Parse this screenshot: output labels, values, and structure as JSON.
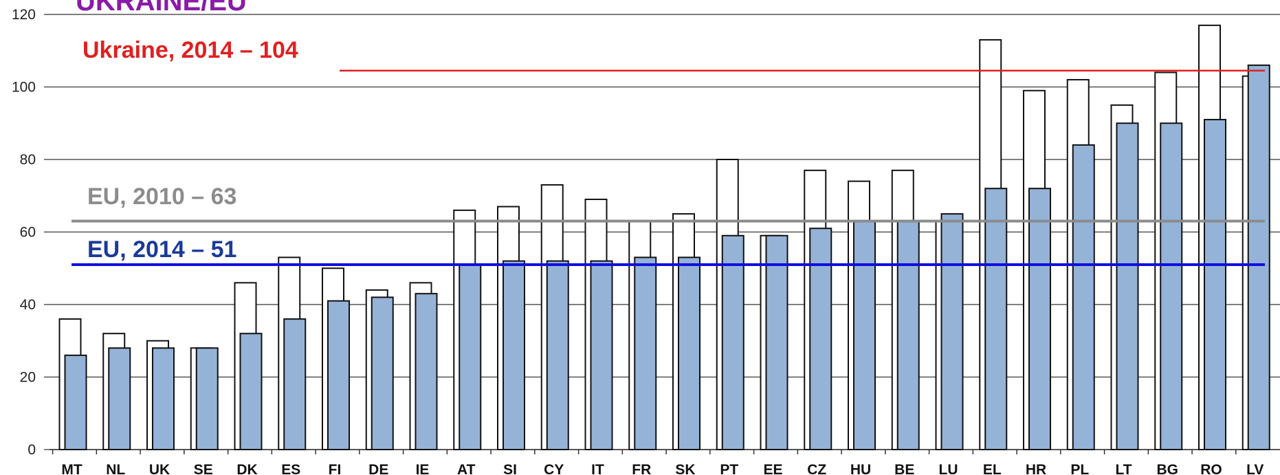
{
  "chart_data": {
    "type": "bar",
    "title": "UKRAINE/EU",
    "xlabel": "",
    "ylabel": "",
    "ylim": [
      0,
      120
    ],
    "yticks": [
      0,
      20,
      40,
      60,
      80,
      100,
      120
    ],
    "grid": true,
    "categories": [
      "MT",
      "NL",
      "UK",
      "SE",
      "DK",
      "ES",
      "FI",
      "DE",
      "IE",
      "AT",
      "SI",
      "CY",
      "IT",
      "FR",
      "SK",
      "PT",
      "EE",
      "CZ",
      "HU",
      "BE",
      "LU",
      "EL",
      "HR",
      "PL",
      "LT",
      "BG",
      "RO",
      "LV"
    ],
    "series": [
      {
        "color": "#ffffff",
        "values": [
          36,
          32,
          30,
          28,
          46,
          53,
          50,
          44,
          46,
          66,
          67,
          73,
          69,
          63,
          65,
          80,
          59,
          77,
          74,
          77,
          63,
          113,
          99,
          102,
          95,
          104,
          117,
          103
        ]
      },
      {
        "color": "#95b3d7",
        "values": [
          26,
          28,
          28,
          28,
          32,
          36,
          41,
          42,
          43,
          51,
          52,
          52,
          52,
          53,
          53,
          59,
          59,
          61,
          63,
          63,
          65,
          72,
          72,
          84,
          90,
          90,
          91,
          106
        ]
      }
    ],
    "reference_lines": [
      {
        "label": "Ukraine, 2014 – 104",
        "value": 104.5,
        "color": "#e02020"
      },
      {
        "label": "EU, 2010 – 63",
        "value": 63,
        "color": "#8c8c8c"
      },
      {
        "label": "EU, 2014 – 51",
        "value": 51,
        "color": "#1010dd"
      }
    ],
    "colors": {
      "ukraine_label": "#e02020",
      "eu2010_label": "#8c8c8c",
      "eu2014_label": "#1a3a9a",
      "title": "#8a1aa8",
      "grid": "#555555"
    }
  }
}
